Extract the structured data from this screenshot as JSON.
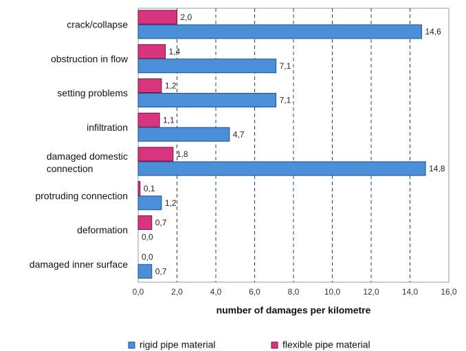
{
  "chart_data": {
    "type": "hbar",
    "categories": [
      "crack/collapse",
      "obstruction in flow",
      "setting problems",
      "infiltration",
      "damaged domestic connection",
      "protruding connection",
      "deformation",
      "damaged inner surface"
    ],
    "series": [
      {
        "name": "rigid pipe material",
        "color": "#4a8fd8",
        "values": [
          14.6,
          7.1,
          7.1,
          4.7,
          14.8,
          1.2,
          0.0,
          0.7
        ],
        "value_labels": [
          "14,6",
          "7,1",
          "7,1",
          "4,7",
          "14,8",
          "1,2",
          "0,0",
          "0,7"
        ]
      },
      {
        "name": "flexible pipe material",
        "color": "#d8357f",
        "values": [
          2.0,
          1.4,
          1.2,
          1.1,
          1.8,
          0.1,
          0.7,
          0.0
        ],
        "value_labels": [
          "2,0",
          "1,4",
          "1,2",
          "1,1",
          "1,8",
          "0,1",
          "0,7",
          "0,0"
        ]
      }
    ],
    "x_label": "number of damages per kilometre",
    "xlim": [
      0,
      16
    ],
    "xticks": [
      {
        "value": 0,
        "label": "0,0"
      },
      {
        "value": 2,
        "label": "2,0"
      },
      {
        "value": 4,
        "label": "4,0"
      },
      {
        "value": 6,
        "label": "6,0"
      },
      {
        "value": 8,
        "label": "8,0"
      },
      {
        "value": 10,
        "label": "10,0"
      },
      {
        "value": 12,
        "label": "12,0"
      },
      {
        "value": 14,
        "label": "14,0"
      },
      {
        "value": 16,
        "label": "16,0"
      }
    ],
    "grid": true,
    "legend": "bottom"
  }
}
